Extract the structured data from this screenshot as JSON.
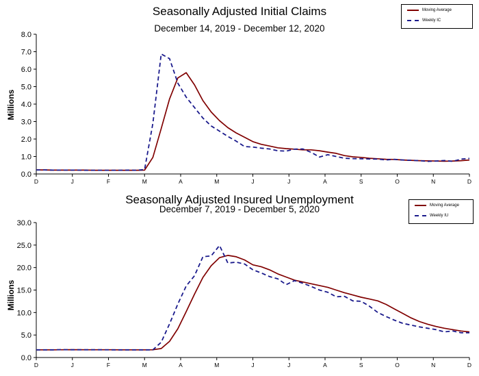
{
  "chart_data": [
    {
      "type": "line",
      "title": "Seasonally Adjusted Initial Claims",
      "subtitle": "December 14, 2019 - December 12, 2020",
      "ylabel": "Millions",
      "ylim": [
        0,
        8
      ],
      "yticks": [
        "0.0",
        "1.0",
        "2.0",
        "3.0",
        "4.0",
        "5.0",
        "6.0",
        "7.0",
        "8.0"
      ],
      "xticks": [
        "D",
        "J",
        "F",
        "M",
        "A",
        "M",
        "J",
        "J",
        "A",
        "S",
        "O",
        "N",
        "D"
      ],
      "x": [
        "2019-12-14",
        "2019-12-21",
        "2019-12-28",
        "2020-01-04",
        "2020-01-11",
        "2020-01-18",
        "2020-01-25",
        "2020-02-01",
        "2020-02-08",
        "2020-02-15",
        "2020-02-22",
        "2020-02-29",
        "2020-03-07",
        "2020-03-14",
        "2020-03-21",
        "2020-03-28",
        "2020-04-04",
        "2020-04-11",
        "2020-04-18",
        "2020-04-25",
        "2020-05-02",
        "2020-05-09",
        "2020-05-16",
        "2020-05-23",
        "2020-05-30",
        "2020-06-06",
        "2020-06-13",
        "2020-06-20",
        "2020-06-27",
        "2020-07-04",
        "2020-07-11",
        "2020-07-18",
        "2020-07-25",
        "2020-08-01",
        "2020-08-08",
        "2020-08-15",
        "2020-08-22",
        "2020-08-29",
        "2020-09-05",
        "2020-09-12",
        "2020-09-19",
        "2020-09-26",
        "2020-10-03",
        "2020-10-10",
        "2020-10-17",
        "2020-10-24",
        "2020-10-31",
        "2020-11-07",
        "2020-11-14",
        "2020-11-21",
        "2020-11-28",
        "2020-12-05",
        "2020-12-12"
      ],
      "series": [
        {
          "name": "Moving Average",
          "color": "#800000",
          "dash": "solid",
          "values": [
            0.23,
            0.23,
            0.22,
            0.22,
            0.22,
            0.22,
            0.22,
            0.21,
            0.21,
            0.21,
            0.21,
            0.21,
            0.21,
            0.22,
            0.95,
            2.6,
            4.3,
            5.5,
            5.8,
            5.1,
            4.2,
            3.55,
            3.05,
            2.65,
            2.35,
            2.1,
            1.85,
            1.7,
            1.6,
            1.5,
            1.45,
            1.42,
            1.38,
            1.38,
            1.33,
            1.25,
            1.18,
            1.05,
            0.98,
            0.95,
            0.9,
            0.87,
            0.84,
            0.83,
            0.8,
            0.78,
            0.76,
            0.75,
            0.74,
            0.73,
            0.74,
            0.76,
            0.8
          ]
        },
        {
          "name": "Weekly IC",
          "color": "#1a1a8c",
          "dash": "dashed",
          "values": [
            0.23,
            0.23,
            0.22,
            0.22,
            0.22,
            0.22,
            0.21,
            0.21,
            0.21,
            0.21,
            0.21,
            0.22,
            0.21,
            0.25,
            2.9,
            6.87,
            6.6,
            5.2,
            4.4,
            3.8,
            3.2,
            2.75,
            2.45,
            2.15,
            1.88,
            1.57,
            1.54,
            1.48,
            1.43,
            1.33,
            1.31,
            1.42,
            1.43,
            1.24,
            0.97,
            1.1,
            1.0,
            0.9,
            0.88,
            0.87,
            0.86,
            0.85,
            0.8,
            0.84,
            0.8,
            0.78,
            0.76,
            0.72,
            0.74,
            0.77,
            0.72,
            0.85,
            0.89
          ]
        }
      ],
      "legend": "top-right",
      "grid": false
    },
    {
      "type": "line",
      "title": "Seasonally Adjusted Insured Unemployment",
      "subtitle": "December 7, 2019 - December 5, 2020",
      "ylabel": "Millions",
      "ylim": [
        0,
        30
      ],
      "yticks": [
        "0.0",
        "5.0",
        "10.0",
        "15.0",
        "20.0",
        "25.0",
        "30.0"
      ],
      "xticks": [
        "D",
        "J",
        "F",
        "M",
        "A",
        "M",
        "J",
        "J",
        "A",
        "S",
        "O",
        "N",
        "D"
      ],
      "x": [
        "2019-12-07",
        "2019-12-14",
        "2019-12-21",
        "2019-12-28",
        "2020-01-04",
        "2020-01-11",
        "2020-01-18",
        "2020-01-25",
        "2020-02-01",
        "2020-02-08",
        "2020-02-15",
        "2020-02-22",
        "2020-02-29",
        "2020-03-07",
        "2020-03-14",
        "2020-03-21",
        "2020-03-28",
        "2020-04-04",
        "2020-04-11",
        "2020-04-18",
        "2020-04-25",
        "2020-05-02",
        "2020-05-09",
        "2020-05-16",
        "2020-05-23",
        "2020-05-30",
        "2020-06-06",
        "2020-06-13",
        "2020-06-20",
        "2020-06-27",
        "2020-07-04",
        "2020-07-11",
        "2020-07-18",
        "2020-07-25",
        "2020-08-01",
        "2020-08-08",
        "2020-08-15",
        "2020-08-22",
        "2020-08-29",
        "2020-09-05",
        "2020-09-12",
        "2020-09-19",
        "2020-09-26",
        "2020-10-03",
        "2020-10-10",
        "2020-10-17",
        "2020-10-24",
        "2020-10-31",
        "2020-11-07",
        "2020-11-14",
        "2020-11-21",
        "2020-11-28",
        "2020-12-05"
      ],
      "series": [
        {
          "name": "Moving Average",
          "color": "#800000",
          "dash": "solid",
          "values": [
            1.7,
            1.7,
            1.7,
            1.72,
            1.74,
            1.74,
            1.72,
            1.72,
            1.72,
            1.72,
            1.7,
            1.7,
            1.7,
            1.7,
            1.72,
            2.0,
            3.6,
            6.4,
            10.2,
            14.1,
            17.8,
            20.4,
            22.2,
            22.7,
            22.4,
            21.7,
            20.6,
            20.2,
            19.5,
            18.6,
            17.9,
            17.2,
            16.8,
            16.4,
            16.0,
            15.6,
            15.0,
            14.4,
            13.9,
            13.4,
            13.0,
            12.6,
            11.8,
            10.8,
            9.8,
            8.8,
            8.0,
            7.4,
            6.9,
            6.5,
            6.2,
            5.9,
            5.7
          ]
        },
        {
          "name": "Weekly IU",
          "color": "#1a1a8c",
          "dash": "dashed",
          "values": [
            1.7,
            1.7,
            1.7,
            1.75,
            1.72,
            1.72,
            1.72,
            1.72,
            1.72,
            1.7,
            1.7,
            1.7,
            1.7,
            1.7,
            1.7,
            3.4,
            7.5,
            11.9,
            15.9,
            18.2,
            22.4,
            22.6,
            24.9,
            21.0,
            21.2,
            20.8,
            19.5,
            18.8,
            18.0,
            17.5,
            16.2,
            17.1,
            16.5,
            15.8,
            15.0,
            14.5,
            13.5,
            13.6,
            12.6,
            12.5,
            11.4,
            10.0,
            9.1,
            8.3,
            7.6,
            7.2,
            6.8,
            6.5,
            6.2,
            5.7,
            5.9,
            5.5,
            5.5
          ]
        }
      ],
      "legend": "top-right",
      "grid": false
    }
  ]
}
